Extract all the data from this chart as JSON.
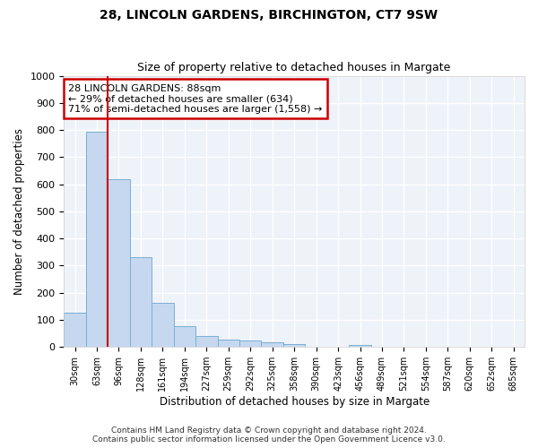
{
  "title1": "28, LINCOLN GARDENS, BIRCHINGTON, CT7 9SW",
  "title2": "Size of property relative to detached houses in Margate",
  "xlabel": "Distribution of detached houses by size in Margate",
  "ylabel": "Number of detached properties",
  "categories": [
    "30sqm",
    "63sqm",
    "96sqm",
    "128sqm",
    "161sqm",
    "194sqm",
    "227sqm",
    "259sqm",
    "292sqm",
    "325sqm",
    "358sqm",
    "390sqm",
    "423sqm",
    "456sqm",
    "489sqm",
    "521sqm",
    "554sqm",
    "587sqm",
    "620sqm",
    "652sqm",
    "685sqm"
  ],
  "values": [
    125,
    795,
    620,
    330,
    162,
    78,
    40,
    28,
    25,
    16,
    12,
    0,
    0,
    8,
    0,
    0,
    0,
    0,
    0,
    0,
    0
  ],
  "bar_color": "#c5d8ef",
  "bar_edge_color": "#7bafd4",
  "vline_x": 2.0,
  "vline_color": "#cc0000",
  "annotation_text": "28 LINCOLN GARDENS: 88sqm\n← 29% of detached houses are smaller (634)\n71% of semi-detached houses are larger (1,558) →",
  "annotation_box_color": "#ffffff",
  "annotation_box_edge": "#cc0000",
  "ylim": [
    0,
    1000
  ],
  "yticks": [
    0,
    100,
    200,
    300,
    400,
    500,
    600,
    700,
    800,
    900,
    1000
  ],
  "background_color": "#eef2f9",
  "grid_color": "#ffffff",
  "footer1": "Contains HM Land Registry data © Crown copyright and database right 2024.",
  "footer2": "Contains public sector information licensed under the Open Government Licence v3.0."
}
